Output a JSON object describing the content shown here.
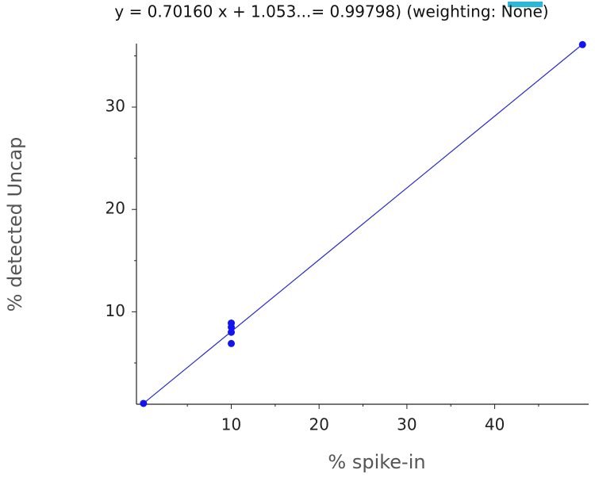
{
  "chart_data": {
    "type": "scatter",
    "title": "y = 0.70160 x + 1.053...= 0.99798)  (weighting: None)",
    "x_label": "% spike-in",
    "y_label": "% detected Uncap",
    "series": [
      {
        "color": "#1414f0",
        "x": [
          0,
          10,
          10,
          10,
          10,
          50
        ],
        "values": [
          1.05,
          8.9,
          8.5,
          8.0,
          6.9,
          36.1
        ]
      }
    ],
    "lines": [
      {
        "color": "#2a2acc",
        "x": [
          0,
          50
        ],
        "values": [
          1.053,
          36.133
        ]
      }
    ],
    "xlim": [
      -0.8,
      50.7
    ],
    "ylim": [
      0.97,
      36.2
    ],
    "xticks": [
      10,
      20,
      30,
      40
    ],
    "yticks": [
      10,
      20,
      30
    ],
    "xminorticks": [
      5,
      15,
      25,
      35,
      45
    ],
    "yminorticks": [
      5,
      15,
      25,
      35
    ]
  }
}
